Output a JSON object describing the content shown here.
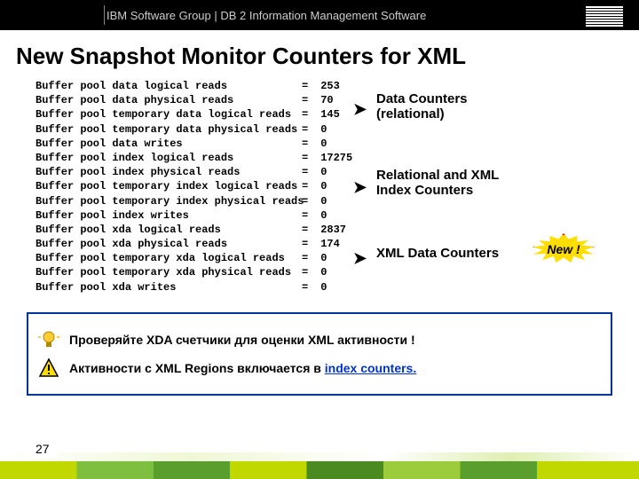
{
  "header": {
    "text": "IBM Software Group  |  DB 2 Information Management Software"
  },
  "title": "New Snapshot Monitor Counters for XML",
  "counters": [
    {
      "label": "Buffer pool data logical reads",
      "value": "253"
    },
    {
      "label": "Buffer pool data physical reads",
      "value": "70"
    },
    {
      "label": "Buffer pool temporary data logical reads",
      "value": "145"
    },
    {
      "label": "Buffer pool temporary data physical reads",
      "value": "0"
    },
    {
      "label": "Buffer pool data writes",
      "value": "0"
    },
    {
      "label": "Buffer pool index logical reads",
      "value": "17275"
    },
    {
      "label": "Buffer pool index physical reads",
      "value": "0"
    },
    {
      "label": "Buffer pool temporary index logical reads",
      "value": "0"
    },
    {
      "label": "Buffer pool temporary index physical reads",
      "value": "0"
    },
    {
      "label": "Buffer pool index writes",
      "value": "0"
    },
    {
      "label": "Buffer pool xda logical reads",
      "value": "2837"
    },
    {
      "label": "Buffer pool xda physical reads",
      "value": "174"
    },
    {
      "label": "Buffer pool temporary xda logical reads",
      "value": "0"
    },
    {
      "label": "Buffer pool temporary xda physical reads",
      "value": "0"
    },
    {
      "label": "Buffer pool xda writes",
      "value": "0"
    }
  ],
  "annotations": {
    "group1_line1": "Data Counters",
    "group1_line2": "(relational)",
    "group2_line1": "Relational and XML",
    "group2_line2": "Index Counters",
    "group3": "XML Data Counters",
    "burst": "New !"
  },
  "tips": {
    "tip1": "Проверяйте XDA счетчики для оценки XML активности !",
    "tip2_prefix": "Активности с XML Regions включается в ",
    "tip2_link": "index counters."
  },
  "page_number": "27",
  "colors": {
    "tip_border": "#003399",
    "link": "#0033cc",
    "burst_fill": "#ffde00",
    "burst_border": "#ff0000"
  }
}
